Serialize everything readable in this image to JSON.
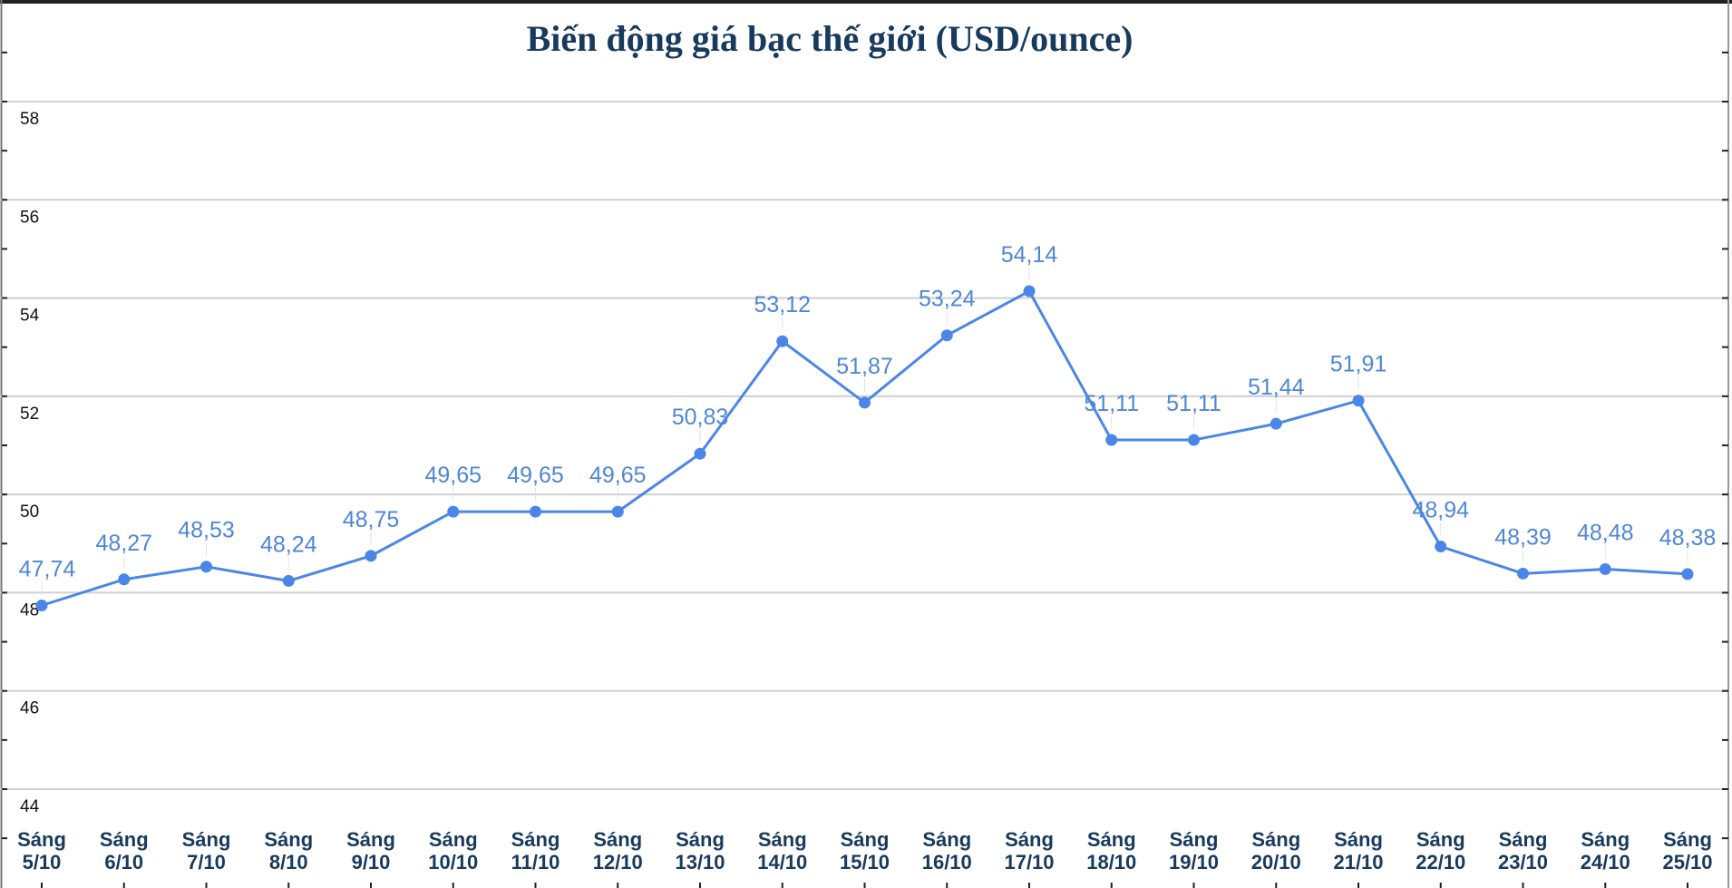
{
  "chart_data": {
    "type": "line",
    "title": "Biến động giá bạc thế giới (USD/ounce)",
    "xlabel": "",
    "ylabel": "",
    "ylim": [
      44,
      58
    ],
    "yticks": [
      44,
      46,
      48,
      50,
      52,
      54,
      56,
      58
    ],
    "grid": true,
    "categories": [
      [
        "Sáng",
        "5/10"
      ],
      [
        "Sáng",
        "6/10"
      ],
      [
        "Sáng",
        "7/10"
      ],
      [
        "Sáng",
        "8/10"
      ],
      [
        "Sáng",
        "9/10"
      ],
      [
        "Sáng",
        "10/10"
      ],
      [
        "Sáng",
        "11/10"
      ],
      [
        "Sáng",
        "12/10"
      ],
      [
        "Sáng",
        "13/10"
      ],
      [
        "Sáng",
        "14/10"
      ],
      [
        "Sáng",
        "15/10"
      ],
      [
        "Sáng",
        "16/10"
      ],
      [
        "Sáng",
        "17/10"
      ],
      [
        "Sáng",
        "18/10"
      ],
      [
        "Sáng",
        "19/10"
      ],
      [
        "Sáng",
        "20/10"
      ],
      [
        "Sáng",
        "21/10"
      ],
      [
        "Sáng",
        "22/10"
      ],
      [
        "Sáng",
        "23/10"
      ],
      [
        "Sáng",
        "24/10"
      ],
      [
        "Sáng",
        "25/10"
      ]
    ],
    "values": [
      47.74,
      48.27,
      48.53,
      48.24,
      48.75,
      49.65,
      49.65,
      49.65,
      50.83,
      53.12,
      51.87,
      53.24,
      54.14,
      51.11,
      51.11,
      51.44,
      51.91,
      48.94,
      48.39,
      48.48,
      48.38
    ],
    "data_labels": [
      "47,74",
      "48,27",
      "48,53",
      "48,24",
      "48,75",
      "49,65",
      "49,65",
      "49,65",
      "50,83",
      "53,12",
      "51,87",
      "53,24",
      "54,14",
      "51,11",
      "51,11",
      "51,44",
      "51,91",
      "48,94",
      "48,39",
      "48,48",
      "48,38"
    ],
    "colors": {
      "line": "#4a86e8",
      "labels": "#4f86d6",
      "title": "#173a5e",
      "grid": "#d0d0d0"
    }
  }
}
